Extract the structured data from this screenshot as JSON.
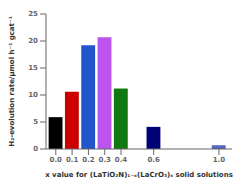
{
  "chart_data": {
    "type": "bar",
    "x_label": "x value for (LaTiO₂N)₁₋ₓ(LaCrO₃)ₓ solid solutions",
    "y_label": "H₂-evolution rate/μmol h⁻¹ gcat⁻¹",
    "x": [
      0.0,
      0.1,
      0.2,
      0.3,
      0.4,
      0.6,
      1.0
    ],
    "values": [
      5.9,
      10.6,
      19.2,
      20.7,
      11.2,
      4.1,
      0.7
    ],
    "colors": [
      "#000000",
      "#cc0000",
      "#2255cc",
      "#bb55ee",
      "#117711",
      "#000077",
      "#5566bb"
    ],
    "xlim": [
      -0.06,
      1.08
    ],
    "xticks": [
      {
        "value": 0.0,
        "label": "0.0"
      },
      {
        "value": 0.1,
        "label": "0.1"
      },
      {
        "value": 0.2,
        "label": "0.2"
      },
      {
        "value": 0.3,
        "label": "0.3"
      },
      {
        "value": 0.4,
        "label": "0.4"
      },
      {
        "value": 0.6,
        "label": "0.6"
      },
      {
        "value": 1.0,
        "label": "1.0"
      }
    ],
    "ylim": [
      0,
      25
    ],
    "yticks": [
      0,
      5,
      10,
      15,
      20,
      25
    ],
    "grid": false
  }
}
